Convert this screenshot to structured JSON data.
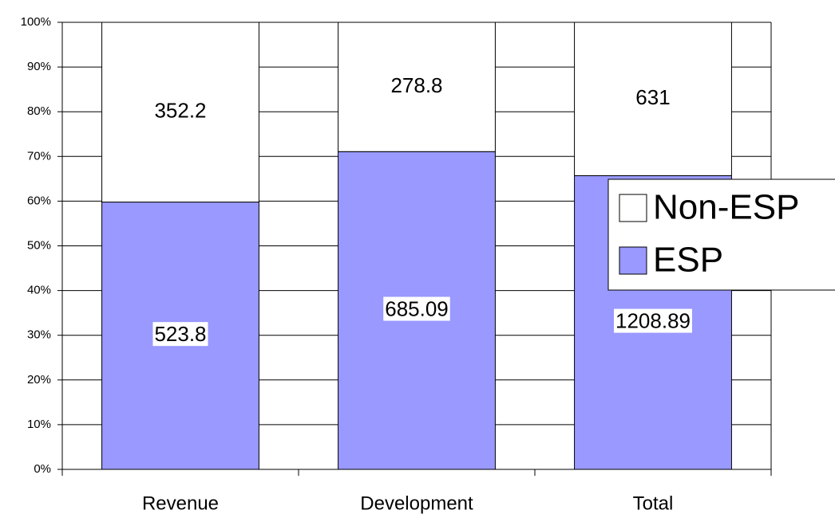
{
  "chart_data": {
    "type": "bar",
    "stacking": "percent",
    "categories": [
      "Revenue",
      "Development",
      "Total"
    ],
    "series": [
      {
        "name": "ESP",
        "color": "#9999ff",
        "values": [
          523.8,
          685.09,
          1208.89
        ]
      },
      {
        "name": "Non-ESP",
        "color": "#ffffff",
        "values": [
          352.2,
          278.8,
          631
        ]
      }
    ],
    "ylim": [
      0,
      100
    ],
    "yticks": [
      {
        "value": 0,
        "label": "0%"
      },
      {
        "value": 10,
        "label": "10%"
      },
      {
        "value": 20,
        "label": "20%"
      },
      {
        "value": 30,
        "label": "30%"
      },
      {
        "value": 40,
        "label": "40%"
      },
      {
        "value": 50,
        "label": "50%"
      },
      {
        "value": 60,
        "label": "60%"
      },
      {
        "value": 70,
        "label": "70%"
      },
      {
        "value": 80,
        "label": "80%"
      },
      {
        "value": 90,
        "label": "90%"
      },
      {
        "value": 100,
        "label": "100%"
      }
    ],
    "grid": true,
    "legend": "right"
  }
}
